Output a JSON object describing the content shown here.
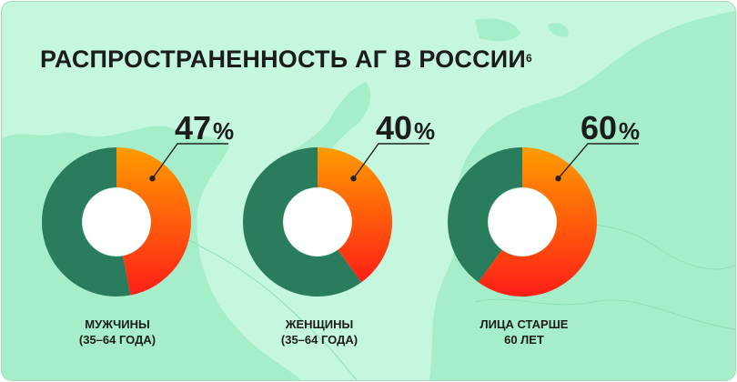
{
  "title": "РАСПРОСТРАНЕННОСТЬ АГ В РОССИИ",
  "title_sup": "6",
  "colors": {
    "background": "#c4f7dd",
    "map": "#a3eec8",
    "rest": "#2a7d5c",
    "highlight_top": "#ff9c00",
    "highlight_bottom": "#ff1e17"
  },
  "chart_data": [
    {
      "type": "pie",
      "label_line1": "МУЖЧИНЫ",
      "label_line2": "(35–64 ГОДА)",
      "value": 47,
      "unit": "%"
    },
    {
      "type": "pie",
      "label_line1": "ЖЕНЩИНЫ",
      "label_line2": "(35–64 ГОДА)",
      "value": 40,
      "unit": "%"
    },
    {
      "type": "pie",
      "label_line1": "ЛИЦА СТАРШЕ",
      "label_line2": "60 ЛЕТ",
      "value": 60,
      "unit": "%"
    }
  ]
}
